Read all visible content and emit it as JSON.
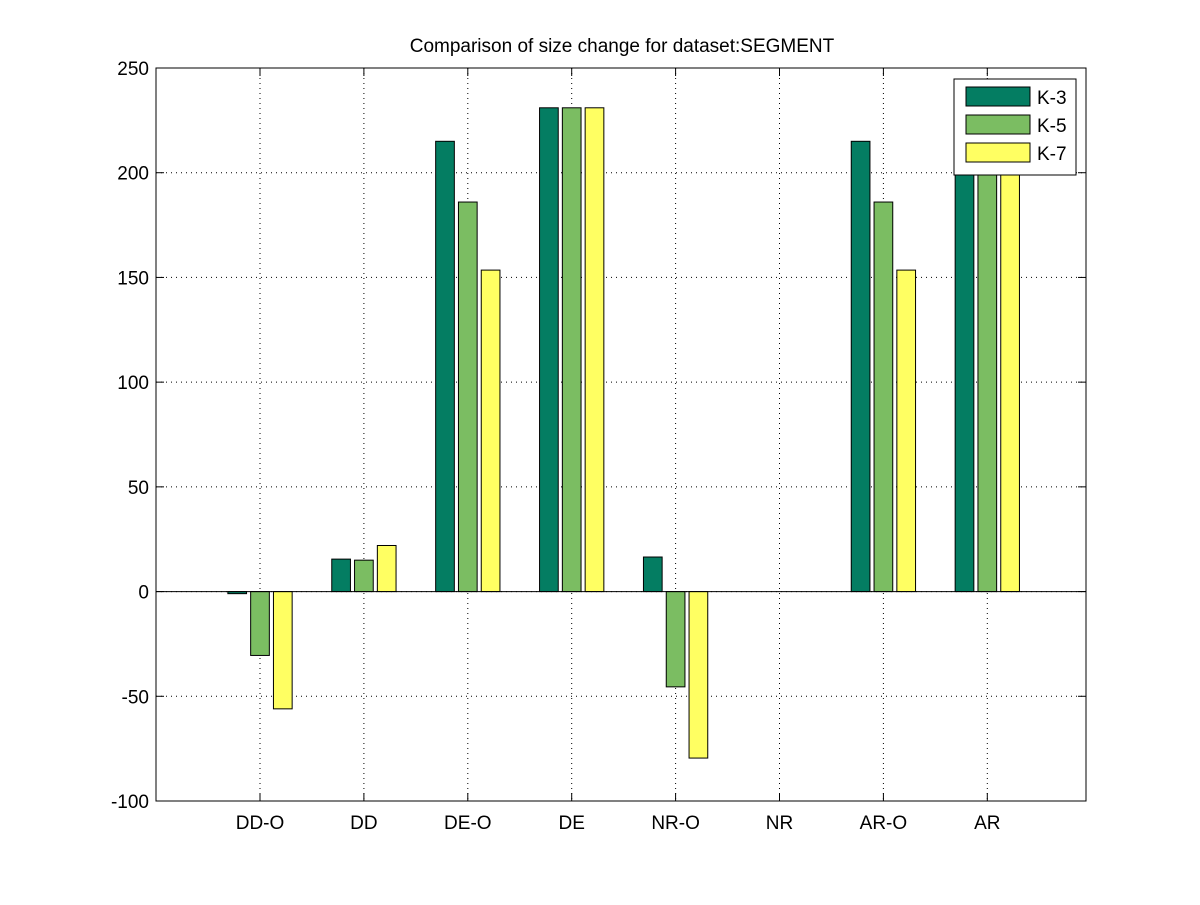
{
  "chart_data": {
    "type": "bar",
    "title": "Comparison of size change for dataset:SEGMENT",
    "xlabel": "",
    "ylabel": "",
    "categories": [
      "DD-O",
      "DD",
      "DE-O",
      "DE",
      "NR-O",
      "NR",
      "AR-O",
      "AR"
    ],
    "ylim": [
      -100,
      250
    ],
    "yticks": [
      -100,
      -50,
      0,
      50,
      100,
      150,
      200,
      250
    ],
    "grid": true,
    "legend_position": "top-right",
    "series": [
      {
        "name": "K-3",
        "color": "#047d62",
        "values": [
          -1,
          15.5,
          215,
          231,
          16.5,
          0,
          215,
          231
        ]
      },
      {
        "name": "K-5",
        "color": "#7bbd62",
        "values": [
          -30.5,
          15,
          186,
          231,
          -45.5,
          0,
          186,
          231
        ]
      },
      {
        "name": "K-7",
        "color": "#ffff62",
        "values": [
          -56,
          22,
          153.5,
          231,
          -79.5,
          0,
          153.5,
          231
        ]
      }
    ]
  }
}
